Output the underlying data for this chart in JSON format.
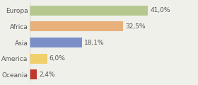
{
  "categories": [
    "Europa",
    "Africa",
    "Asia",
    "America",
    "Oceania"
  ],
  "values": [
    41.0,
    32.5,
    18.1,
    6.0,
    2.4
  ],
  "labels": [
    "41,0%",
    "32,5%",
    "18,1%",
    "6,0%",
    "2,4%"
  ],
  "bar_colors": [
    "#b5c98e",
    "#e8b07a",
    "#7b8ec8",
    "#f0d06a",
    "#c0392b"
  ],
  "background_color": "#f0f0eb",
  "text_color": "#555555",
  "bar_label_fontsize": 6.5,
  "category_fontsize": 6.5,
  "figsize": [
    2.8,
    1.2
  ],
  "dpi": 100,
  "xlim": [
    0,
    58
  ]
}
